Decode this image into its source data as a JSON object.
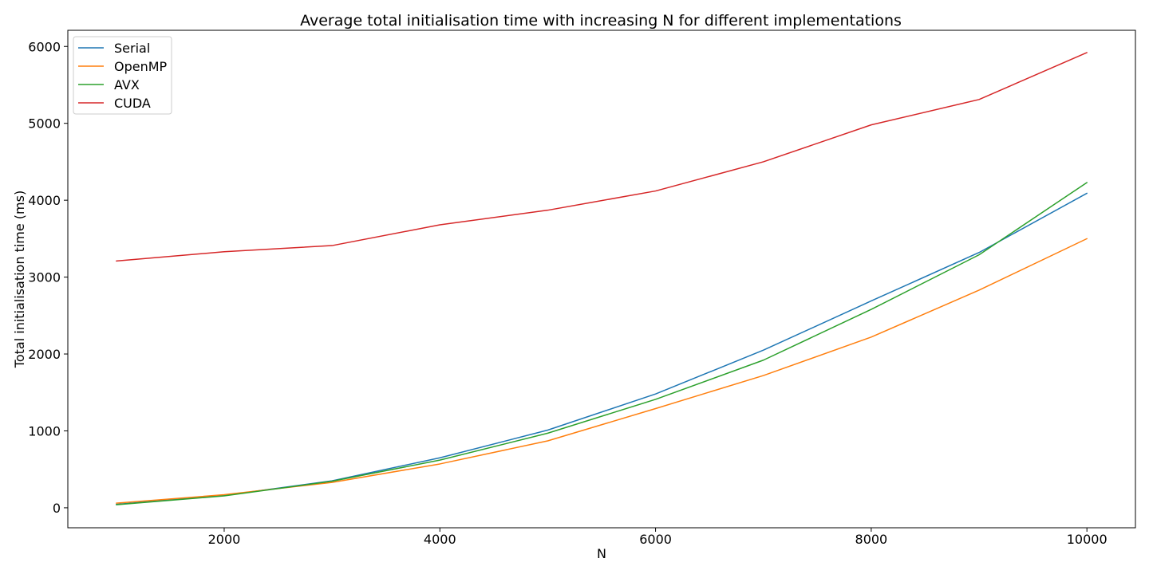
{
  "chart_data": {
    "type": "line",
    "title": "Average total initialisation time with increasing N for different implementations",
    "xlabel": "N",
    "ylabel": "Total initialisation time (ms)",
    "xlim": [
      550,
      10450
    ],
    "ylim": [
      -260,
      6210
    ],
    "xticks": [
      2000,
      4000,
      6000,
      8000,
      10000
    ],
    "yticks": [
      0,
      1000,
      2000,
      3000,
      4000,
      5000,
      6000
    ],
    "grid": false,
    "legend_position": "top-left",
    "x": [
      1000,
      2000,
      3000,
      4000,
      5000,
      6000,
      7000,
      8000,
      9000,
      10000
    ],
    "series": [
      {
        "name": "Serial",
        "color": "#1f77b4",
        "values": [
          45,
          160,
          350,
          650,
          1010,
          1480,
          2050,
          2690,
          3320,
          4090
        ]
      },
      {
        "name": "OpenMP",
        "color": "#ff7f0e",
        "values": [
          60,
          170,
          330,
          570,
          870,
          1290,
          1720,
          2220,
          2830,
          3500
        ]
      },
      {
        "name": "AVX",
        "color": "#2ca02c",
        "values": [
          40,
          155,
          345,
          620,
          970,
          1410,
          1920,
          2580,
          3290,
          4230
        ]
      },
      {
        "name": "CUDA",
        "color": "#d62728",
        "values": [
          3210,
          3330,
          3410,
          3680,
          3870,
          4120,
          4500,
          4980,
          5310,
          5920
        ]
      }
    ]
  }
}
